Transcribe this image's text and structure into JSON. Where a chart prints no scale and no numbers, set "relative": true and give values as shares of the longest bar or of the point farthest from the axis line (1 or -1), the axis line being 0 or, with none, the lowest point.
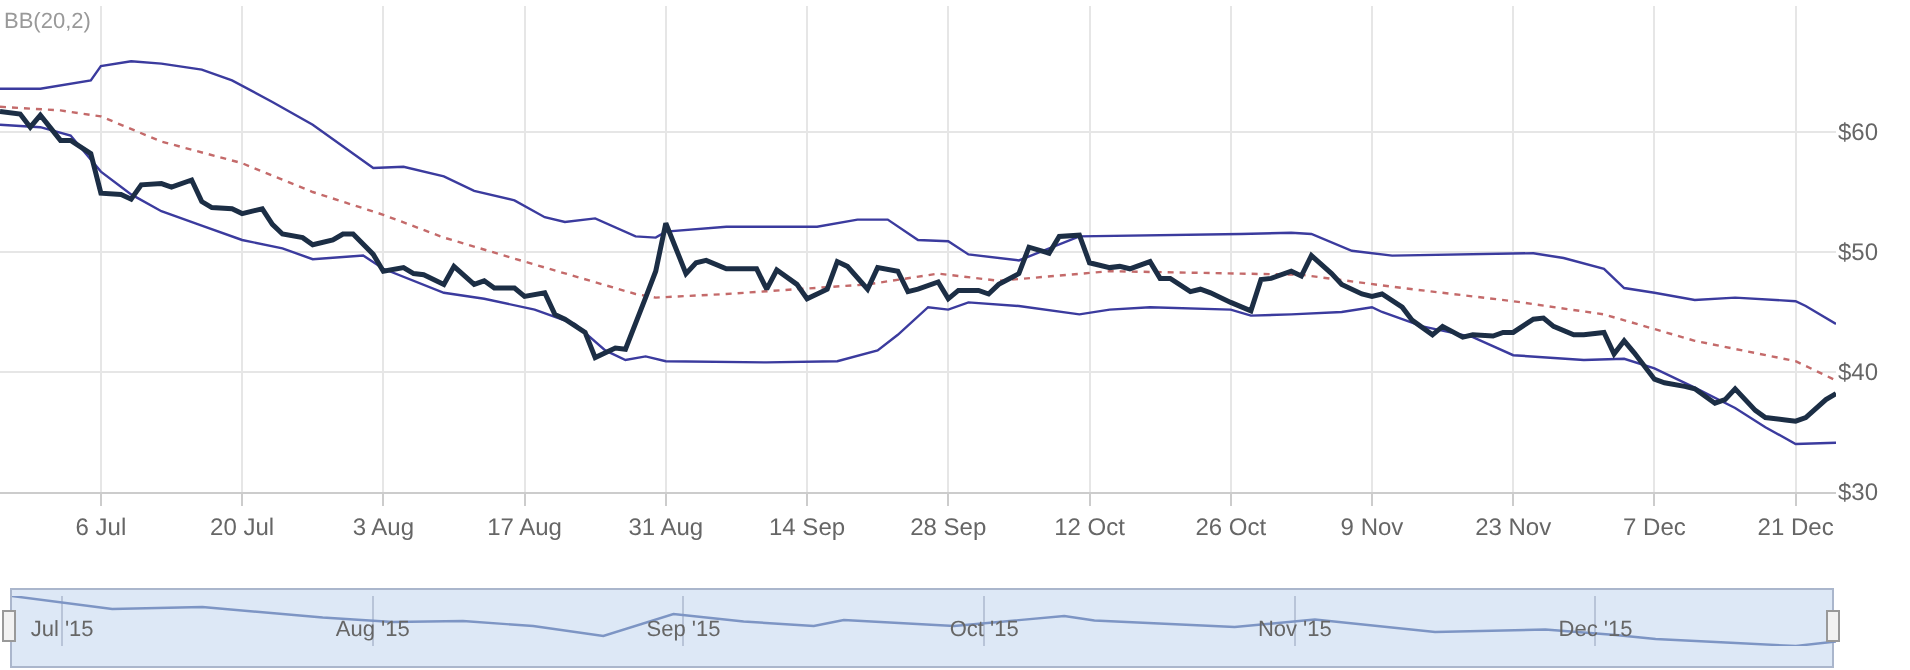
{
  "chart_data": [
    {
      "type": "line",
      "annotations": [
        "BB(20,2)"
      ],
      "xlim": [
        "2015-06-26",
        "2015-12-25"
      ],
      "ylim": [
        30,
        70.5
      ],
      "xticks": [
        {
          "value": "2015-07-06",
          "label": "6 Jul"
        },
        {
          "value": "2015-07-20",
          "label": "20 Jul"
        },
        {
          "value": "2015-08-03",
          "label": "3 Aug"
        },
        {
          "value": "2015-08-17",
          "label": "17 Aug"
        },
        {
          "value": "2015-08-31",
          "label": "31 Aug"
        },
        {
          "value": "2015-09-14",
          "label": "14 Sep"
        },
        {
          "value": "2015-09-28",
          "label": "28 Sep"
        },
        {
          "value": "2015-10-12",
          "label": "12 Oct"
        },
        {
          "value": "2015-10-26",
          "label": "26 Oct"
        },
        {
          "value": "2015-11-09",
          "label": "9 Nov"
        },
        {
          "value": "2015-11-23",
          "label": "23 Nov"
        },
        {
          "value": "2015-12-07",
          "label": "7 Dec"
        },
        {
          "value": "2015-12-21",
          "label": "21 Dec"
        }
      ],
      "yticks": [
        {
          "value": 30,
          "label": "$30"
        },
        {
          "value": 40,
          "label": "$40"
        },
        {
          "value": 50,
          "label": "$50"
        },
        {
          "value": 60,
          "label": "$60"
        }
      ],
      "grid": true,
      "marker": "none",
      "series": [
        {
          "color": "#3b3b9e",
          "line_style": "solid",
          "x": [
            "2015-06-26",
            "2015-06-30",
            "2015-07-05",
            "2015-07-06",
            "2015-07-09",
            "2015-07-12",
            "2015-07-16",
            "2015-07-19",
            "2015-07-23",
            "2015-07-27",
            "2015-08-02",
            "2015-08-05",
            "2015-08-09",
            "2015-08-12",
            "2015-08-16",
            "2015-08-19",
            "2015-08-21",
            "2015-08-24",
            "2015-08-28",
            "2015-08-30",
            "2015-08-31",
            "2015-09-06",
            "2015-09-15",
            "2015-09-19",
            "2015-09-22",
            "2015-09-25",
            "2015-09-28",
            "2015-09-30",
            "2015-10-05",
            "2015-10-11",
            "2015-10-27",
            "2015-11-01",
            "2015-11-03",
            "2015-11-07",
            "2015-11-11",
            "2015-11-25",
            "2015-11-28",
            "2015-12-02",
            "2015-12-04",
            "2015-12-07",
            "2015-12-11",
            "2015-12-15",
            "2015-12-21",
            "2015-12-22",
            "2015-12-25"
          ],
          "values": [
            63.6,
            63.6,
            64.3,
            65.5,
            65.9,
            65.7,
            65.2,
            64.3,
            62.5,
            60.6,
            57.0,
            57.1,
            56.3,
            55.1,
            54.3,
            52.9,
            52.5,
            52.8,
            51.3,
            51.2,
            51.7,
            52.1,
            52.1,
            52.7,
            52.7,
            51.0,
            50.9,
            49.8,
            49.3,
            51.3,
            51.5,
            51.6,
            51.5,
            50.1,
            49.7,
            49.9,
            49.5,
            48.6,
            47.0,
            46.6,
            46.0,
            46.2,
            45.9,
            45.5,
            44.0
          ]
        },
        {
          "color": "#3b3b9e",
          "line_style": "solid",
          "x": [
            "2015-06-26",
            "2015-06-30",
            "2015-07-03",
            "2015-07-06",
            "2015-07-09",
            "2015-07-12",
            "2015-07-16",
            "2015-07-20",
            "2015-07-24",
            "2015-07-27",
            "2015-08-01",
            "2015-08-03",
            "2015-08-09",
            "2015-08-13",
            "2015-08-18",
            "2015-08-22",
            "2015-08-25",
            "2015-08-27",
            "2015-08-29",
            "2015-08-31",
            "2015-09-10",
            "2015-09-17",
            "2015-09-21",
            "2015-09-23",
            "2015-09-26",
            "2015-09-28",
            "2015-09-30",
            "2015-10-05",
            "2015-10-11",
            "2015-10-14",
            "2015-10-18",
            "2015-10-26",
            "2015-10-28",
            "2015-11-01",
            "2015-11-06",
            "2015-11-09",
            "2015-11-10",
            "2015-11-14",
            "2015-11-19",
            "2015-11-23",
            "2015-11-30",
            "2015-12-04",
            "2015-12-07",
            "2015-12-11",
            "2015-12-15",
            "2015-12-18",
            "2015-12-21",
            "2015-12-25"
          ],
          "values": [
            60.6,
            60.4,
            59.7,
            56.7,
            54.8,
            53.4,
            52.2,
            51.0,
            50.3,
            49.4,
            49.7,
            48.6,
            46.6,
            46.1,
            45.2,
            44.0,
            41.8,
            41.0,
            41.3,
            40.9,
            40.8,
            40.9,
            41.8,
            43.1,
            45.4,
            45.2,
            45.8,
            45.5,
            44.8,
            45.2,
            45.4,
            45.2,
            44.7,
            44.8,
            45.0,
            45.4,
            45.0,
            43.8,
            42.9,
            41.4,
            41.0,
            41.1,
            40.3,
            38.7,
            37.0,
            35.4,
            34.0,
            34.1
          ]
        },
        {
          "color": "#c46a6a",
          "line_style": "dotted",
          "x": [
            "2015-06-26",
            "2015-07-02",
            "2015-07-06",
            "2015-07-12",
            "2015-07-20",
            "2015-07-27",
            "2015-08-03",
            "2015-08-09",
            "2015-08-17",
            "2015-08-28",
            "2015-08-30",
            "2015-09-06",
            "2015-09-20",
            "2015-09-27",
            "2015-10-03",
            "2015-10-14",
            "2015-10-27",
            "2015-11-02",
            "2015-11-12",
            "2015-11-23",
            "2015-12-02",
            "2015-12-11",
            "2015-12-21",
            "2015-12-25"
          ],
          "values": [
            62.1,
            61.8,
            61.3,
            59.2,
            57.4,
            55.0,
            53.1,
            51.2,
            49.2,
            46.5,
            46.2,
            46.5,
            47.3,
            48.2,
            47.6,
            48.4,
            48.2,
            48.1,
            47.0,
            45.9,
            44.8,
            42.6,
            40.9,
            39.3
          ]
        },
        {
          "color": "#1c2e45",
          "line_style": "solid",
          "x": [
            "2015-06-26",
            "2015-06-28",
            "2015-06-29",
            "2015-06-30",
            "2015-07-02",
            "2015-07-03",
            "2015-07-05",
            "2015-07-06",
            "2015-07-08",
            "2015-07-09",
            "2015-07-10",
            "2015-07-12",
            "2015-07-13",
            "2015-07-15",
            "2015-07-16",
            "2015-07-17",
            "2015-07-19",
            "2015-07-20",
            "2015-07-22",
            "2015-07-23",
            "2015-07-24",
            "2015-07-26",
            "2015-07-27",
            "2015-07-29",
            "2015-07-30",
            "2015-07-31",
            "2015-08-02",
            "2015-08-03",
            "2015-08-05",
            "2015-08-06",
            "2015-08-07",
            "2015-08-09",
            "2015-08-10",
            "2015-08-12",
            "2015-08-13",
            "2015-08-14",
            "2015-08-16",
            "2015-08-17",
            "2015-08-19",
            "2015-08-20",
            "2015-08-21",
            "2015-08-23",
            "2015-08-24",
            "2015-08-26",
            "2015-08-27",
            "2015-08-29",
            "2015-08-30",
            "2015-08-31",
            "2015-09-02",
            "2015-09-03",
            "2015-09-04",
            "2015-09-06",
            "2015-09-07",
            "2015-09-09",
            "2015-09-10",
            "2015-09-11",
            "2015-09-13",
            "2015-09-14",
            "2015-09-16",
            "2015-09-17",
            "2015-09-18",
            "2015-09-20",
            "2015-09-21",
            "2015-09-23",
            "2015-09-24",
            "2015-09-25",
            "2015-09-27",
            "2015-09-28",
            "2015-09-29",
            "2015-10-01",
            "2015-10-02",
            "2015-10-03",
            "2015-10-05",
            "2015-10-06",
            "2015-10-08",
            "2015-10-09",
            "2015-10-11",
            "2015-10-12",
            "2015-10-14",
            "2015-10-15",
            "2015-10-16",
            "2015-10-18",
            "2015-10-19",
            "2015-10-20",
            "2015-10-22",
            "2015-10-23",
            "2015-10-24",
            "2015-10-26",
            "2015-10-28",
            "2015-10-29",
            "2015-10-30",
            "2015-11-01",
            "2015-11-02",
            "2015-11-03",
            "2015-11-05",
            "2015-11-06",
            "2015-11-08",
            "2015-11-09",
            "2015-11-10",
            "2015-11-12",
            "2015-11-13",
            "2015-11-15",
            "2015-11-16",
            "2015-11-18",
            "2015-11-19",
            "2015-11-21",
            "2015-11-22",
            "2015-11-23",
            "2015-11-25",
            "2015-11-26",
            "2015-11-27",
            "2015-11-29",
            "2015-11-30",
            "2015-12-02",
            "2015-12-03",
            "2015-12-04",
            "2015-12-05",
            "2015-12-07",
            "2015-12-08",
            "2015-12-10",
            "2015-12-11",
            "2015-12-13",
            "2015-12-14",
            "2015-12-15",
            "2015-12-17",
            "2015-12-18",
            "2015-12-20",
            "2015-12-21",
            "2015-12-22",
            "2015-12-24",
            "2015-12-25"
          ],
          "values": [
            61.7,
            61.5,
            60.4,
            61.4,
            59.3,
            59.3,
            58.2,
            54.9,
            54.8,
            54.4,
            55.6,
            55.7,
            55.4,
            56.0,
            54.2,
            53.7,
            53.6,
            53.2,
            53.6,
            52.3,
            51.5,
            51.2,
            50.6,
            51.0,
            51.5,
            51.5,
            49.8,
            48.4,
            48.7,
            48.2,
            48.1,
            47.3,
            48.8,
            47.3,
            47.6,
            47.0,
            47.0,
            46.3,
            46.6,
            44.8,
            44.4,
            43.3,
            41.2,
            42.0,
            41.9,
            46.2,
            48.4,
            52.4,
            48.2,
            49.1,
            49.3,
            48.6,
            48.6,
            48.6,
            46.9,
            48.5,
            47.3,
            46.1,
            46.9,
            49.2,
            48.8,
            46.9,
            48.7,
            48.4,
            46.7,
            46.9,
            47.5,
            46.1,
            46.8,
            46.8,
            46.5,
            47.3,
            48.2,
            50.4,
            49.9,
            51.3,
            51.4,
            49.1,
            48.7,
            48.8,
            48.6,
            49.2,
            47.8,
            47.8,
            46.7,
            46.9,
            46.6,
            45.8,
            45.1,
            47.7,
            47.8,
            48.4,
            48.0,
            49.7,
            48.2,
            47.3,
            46.5,
            46.3,
            46.5,
            45.4,
            44.3,
            43.1,
            43.8,
            42.9,
            43.1,
            43.0,
            43.3,
            43.3,
            44.4,
            44.5,
            43.8,
            43.1,
            43.1,
            43.3,
            41.5,
            42.6,
            41.6,
            39.4,
            39.1,
            38.8,
            38.6,
            37.4,
            37.7,
            38.6,
            36.8,
            36.2,
            36.0,
            35.9,
            36.2,
            37.7,
            38.2
          ]
        }
      ]
    },
    {
      "type": "line",
      "relative": true,
      "xlim": [
        "2015-06-26",
        "2015-12-25"
      ],
      "tick_labels": "x",
      "xticks": [
        {
          "value": "2015-07-01",
          "label": "Jul '15"
        },
        {
          "value": "2015-08-01",
          "label": "Aug '15"
        },
        {
          "value": "2015-09-01",
          "label": "Sep '15"
        },
        {
          "value": "2015-10-01",
          "label": "Oct '15"
        },
        {
          "value": "2015-11-01",
          "label": "Nov '15"
        },
        {
          "value": "2015-12-01",
          "label": "Dec '15"
        }
      ],
      "grid": "x",
      "marker": "none",
      "series": [
        {
          "color": "#7d95c4",
          "line_style": "solid",
          "x": [
            "2015-06-26",
            "2015-07-06",
            "2015-07-15",
            "2015-07-27",
            "2015-08-03",
            "2015-08-10",
            "2015-08-17",
            "2015-08-24",
            "2015-08-31",
            "2015-09-07",
            "2015-09-14",
            "2015-09-17",
            "2015-09-28",
            "2015-10-09",
            "2015-10-12",
            "2015-10-26",
            "2015-11-03",
            "2015-11-15",
            "2015-11-26",
            "2015-12-03",
            "2015-12-07",
            "2015-12-14",
            "2015-12-21",
            "2015-12-25"
          ],
          "values": [
            1.0,
            0.74,
            0.78,
            0.57,
            0.48,
            0.5,
            0.4,
            0.2,
            0.64,
            0.49,
            0.4,
            0.52,
            0.4,
            0.6,
            0.51,
            0.38,
            0.53,
            0.28,
            0.33,
            0.22,
            0.14,
            0.07,
            0,
            0.09
          ]
        }
      ]
    }
  ]
}
